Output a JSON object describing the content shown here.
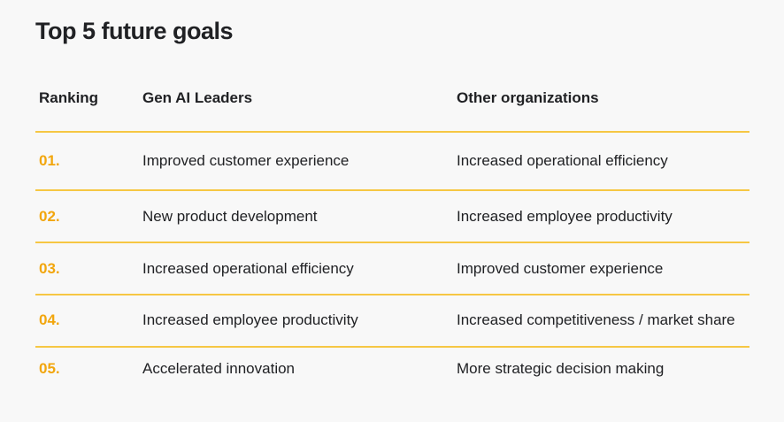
{
  "title": "Top 5 future goals",
  "table": {
    "header": [
      "Ranking",
      "Gen AI Leaders",
      "Other organizations"
    ],
    "rows": [
      [
        "01.",
        "Improved customer experience",
        "Increased operational efficiency"
      ],
      [
        "02.",
        "New product development",
        "Increased employee productivity"
      ],
      [
        "03.",
        "Increased operational efficiency",
        "Improved customer experience"
      ],
      [
        "04.",
        "Increased employee productivity",
        "Increased competitiveness / market share"
      ],
      [
        "05.",
        "Accelerated innovation",
        "More strategic decision making"
      ]
    ]
  }
}
